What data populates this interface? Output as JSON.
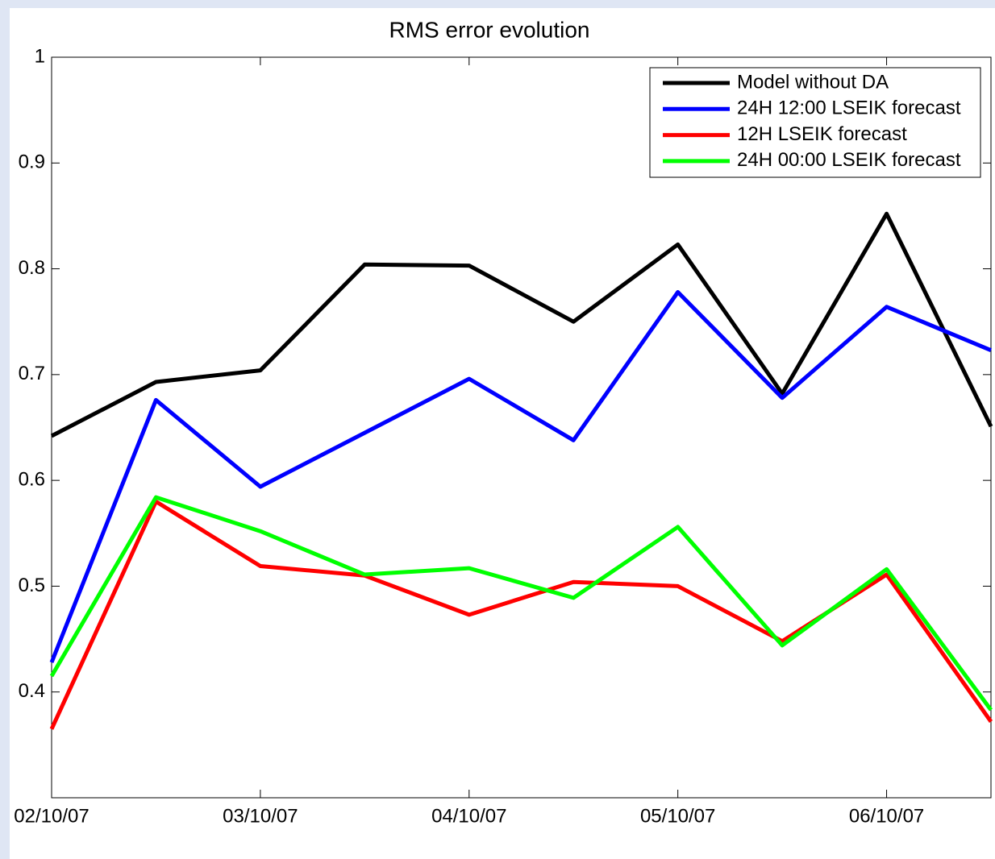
{
  "chart_data": {
    "type": "line",
    "title": "RMS error evolution",
    "x": [
      0,
      0.5,
      1,
      1.5,
      2,
      2.5,
      3,
      3.5,
      4,
      4.5
    ],
    "xlim": [
      0,
      4.5
    ],
    "xticks": [
      {
        "value": 0,
        "label": "02/10/07"
      },
      {
        "value": 1,
        "label": "03/10/07"
      },
      {
        "value": 2,
        "label": "04/10/07"
      },
      {
        "value": 3,
        "label": "05/10/07"
      },
      {
        "value": 4,
        "label": "06/10/07"
      }
    ],
    "ylim": [
      0.3,
      1
    ],
    "yticks": [
      0.4,
      0.5,
      0.6,
      0.7,
      0.8,
      0.9,
      1
    ],
    "legend": "upper right",
    "series": [
      {
        "name": "Model without DA",
        "color": "#000000",
        "values": [
          0.642,
          0.693,
          0.704,
          0.804,
          0.803,
          0.75,
          0.823,
          0.682,
          0.852,
          0.651
        ]
      },
      {
        "name": "24H 12:00 LSEIK forecast",
        "color": "#0000ff",
        "values": [
          0.428,
          0.676,
          0.594,
          0.645,
          0.696,
          0.638,
          0.778,
          0.678,
          0.764,
          0.723
        ]
      },
      {
        "name": "12H LSEIK forecast",
        "color": "#ff0000",
        "values": [
          0.365,
          0.58,
          0.519,
          0.51,
          0.473,
          0.504,
          0.5,
          0.448,
          0.511,
          0.372
        ]
      },
      {
        "name": "24H 00:00 LSEIK forecast",
        "color": "#00ff00",
        "values": [
          0.415,
          0.584,
          0.552,
          0.511,
          0.517,
          0.489,
          0.556,
          0.444,
          0.516,
          0.383
        ]
      }
    ]
  }
}
